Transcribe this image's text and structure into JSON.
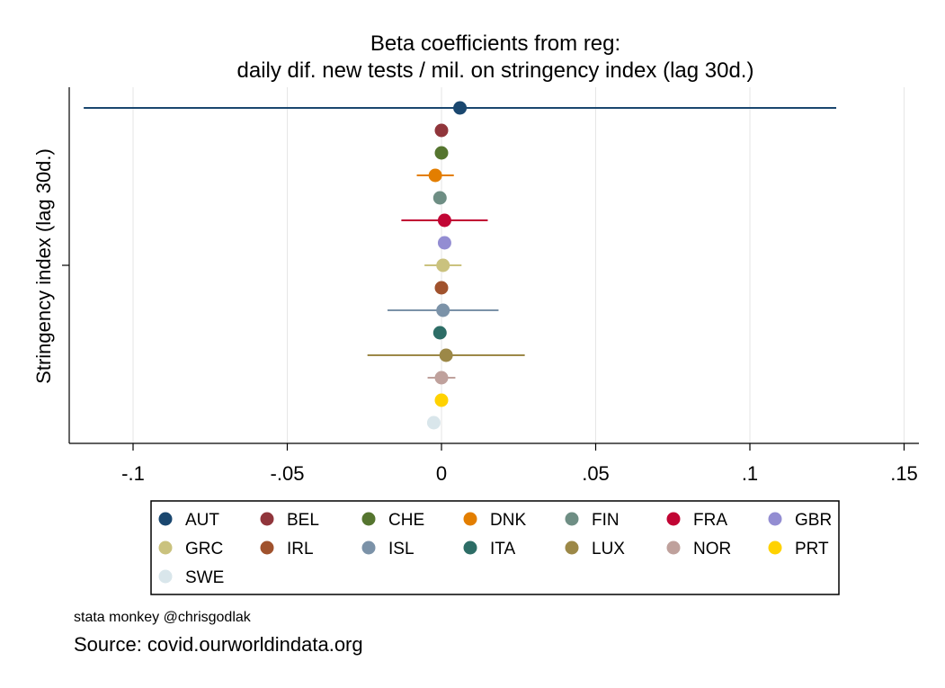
{
  "chart_data": {
    "type": "scatter",
    "title": "Beta coefficients from reg:",
    "subtitle": "daily dif. new tests / mil. on stringency index (lag 30d.)",
    "xlabel": "",
    "ylabel": "Stringency index (lag 30d.)",
    "xlim": [
      -0.12,
      0.15
    ],
    "xticks": [
      -0.1,
      -0.05,
      0,
      0.05,
      0.1,
      0.15
    ],
    "xtick_labels": [
      "-.1",
      "-.05",
      "0",
      ".05",
      ".1",
      ".15"
    ],
    "grid": true,
    "legend_position": "bottom",
    "series": [
      {
        "name": "AUT",
        "color": "#1a476f",
        "x": 0.006,
        "ci": [
          -0.116,
          0.128
        ]
      },
      {
        "name": "BEL",
        "color": "#90353b",
        "x": 0.0,
        "ci": [
          0.0,
          0.0
        ]
      },
      {
        "name": "CHE",
        "color": "#55752f",
        "x": 0.0,
        "ci": [
          0.0,
          0.0
        ]
      },
      {
        "name": "DNK",
        "color": "#e37e00",
        "x": -0.002,
        "ci": [
          -0.008,
          0.004
        ]
      },
      {
        "name": "FIN",
        "color": "#6e8e84",
        "x": -0.0005,
        "ci": [
          -0.0005,
          -0.0005
        ]
      },
      {
        "name": "FRA",
        "color": "#c10534",
        "x": 0.001,
        "ci": [
          -0.013,
          0.015
        ]
      },
      {
        "name": "GBR",
        "color": "#938dd2",
        "x": 0.001,
        "ci": [
          0.001,
          0.001
        ]
      },
      {
        "name": "GRC",
        "color": "#cac27e",
        "x": 0.0005,
        "ci": [
          -0.0055,
          0.0065
        ]
      },
      {
        "name": "IRL",
        "color": "#a0522d",
        "x": 0.0,
        "ci": [
          0.0,
          0.0
        ]
      },
      {
        "name": "ISL",
        "color": "#7b92a8",
        "x": 0.0005,
        "ci": [
          -0.0175,
          0.0185
        ]
      },
      {
        "name": "ITA",
        "color": "#2d6d66",
        "x": -0.0005,
        "ci": [
          -0.0015,
          0.0005
        ]
      },
      {
        "name": "LUX",
        "color": "#9c8847",
        "x": 0.0015,
        "ci": [
          -0.024,
          0.027
        ]
      },
      {
        "name": "NOR",
        "color": "#bfa19c",
        "x": 0.0,
        "ci": [
          -0.0045,
          0.0045
        ]
      },
      {
        "name": "PRT",
        "color": "#ffd200",
        "x": 0.0,
        "ci": [
          0.0,
          0.0
        ]
      },
      {
        "name": "SWE",
        "color": "#d9e6eb",
        "x": -0.0025,
        "ci": [
          -0.0025,
          -0.0025
        ]
      }
    ]
  },
  "notes": {
    "credit": "stata monkey @chrisgodlak",
    "source": "Source: covid.ourworldindata.org"
  }
}
